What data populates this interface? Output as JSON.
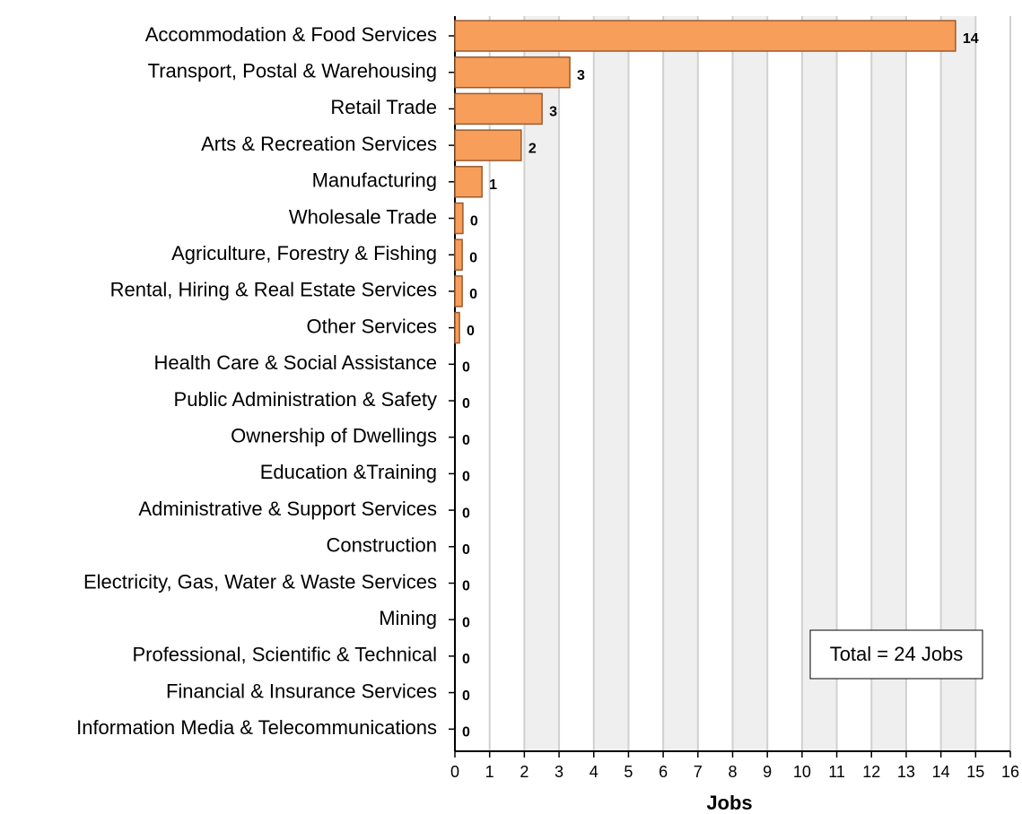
{
  "chart_data": {
    "type": "bar",
    "orientation": "horizontal",
    "xlabel": "Jobs",
    "annotation": "Total = 24 Jobs",
    "categories": [
      "Accommodation & Food Services",
      "Transport, Postal & Warehousing",
      "Retail Trade",
      "Arts & Recreation Services",
      "Manufacturing",
      "Wholesale Trade",
      "Agriculture, Forestry & Fishing",
      "Rental, Hiring & Real Estate Services",
      "Other Services",
      "Health Care & Social Assistance",
      "Public Administration & Safety",
      "Ownership of Dwellings",
      "Education &Training",
      "Administrative & Support Services",
      "Construction",
      "Electricity, Gas, Water & Waste Services",
      "Mining",
      "Professional, Scientific & Technical",
      "Financial & Insurance Services",
      "Information Media & Telecommunications"
    ],
    "values": [
      14.42,
      3.31,
      2.51,
      1.91,
      0.78,
      0.23,
      0.21,
      0.21,
      0.13,
      0,
      0,
      0,
      0,
      0,
      0,
      0,
      0,
      0,
      0,
      0
    ],
    "value_labels": [
      "14",
      "3",
      "3",
      "2",
      "1",
      "0",
      "0",
      "0",
      "0",
      "0",
      "0",
      "0",
      "0",
      "0",
      "0",
      "0",
      "0",
      "0",
      "0",
      "0"
    ],
    "color": "#f79e5a",
    "xlim": [
      0,
      16
    ],
    "xticks": [
      0,
      1,
      2,
      3,
      4,
      5,
      6,
      7,
      8,
      9,
      10,
      11,
      12,
      13,
      14,
      15,
      16
    ],
    "grid": true
  }
}
